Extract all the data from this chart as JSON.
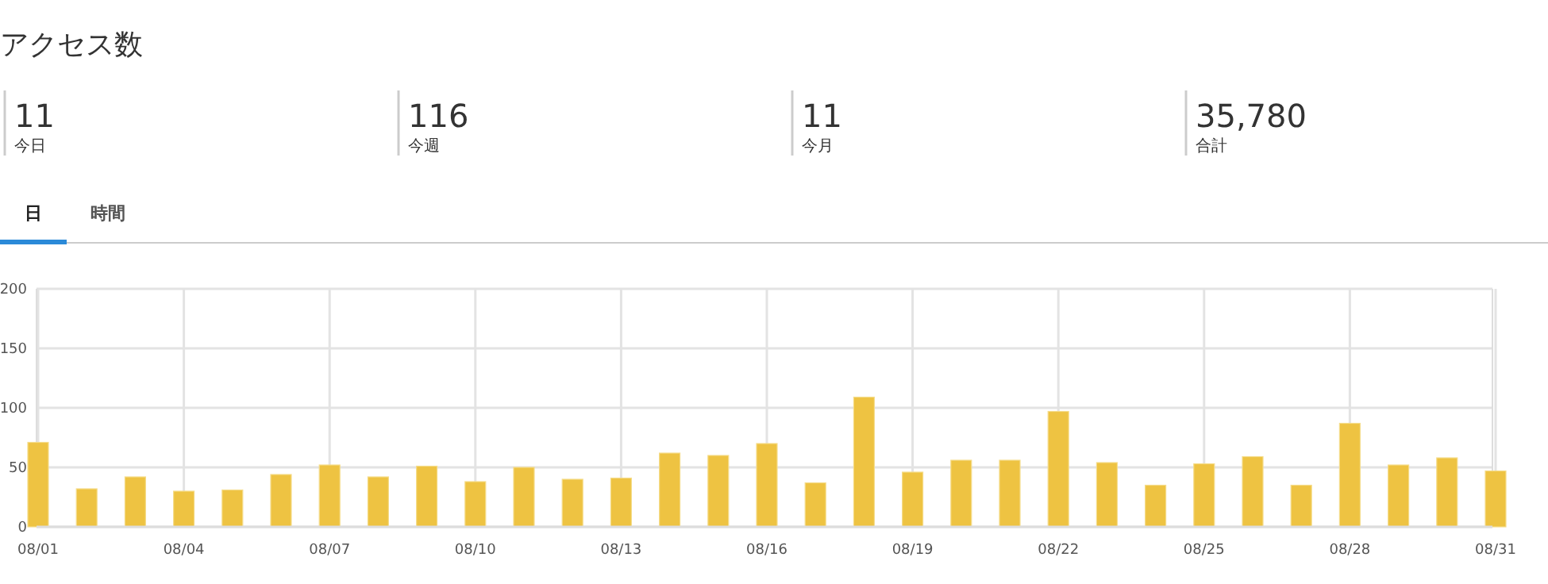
{
  "chart_data": [
    {
      "type": "other",
      "title": "アクセス数",
      "categories": [
        "今日",
        "今週",
        "今月",
        "合計"
      ],
      "value_labels": [
        "11",
        "116",
        "11",
        "35,780"
      ],
      "annotations": [
        "日",
        "時間"
      ]
    },
    {
      "type": "bar",
      "categories": [
        "08/01",
        null,
        null,
        "08/04",
        null,
        null,
        "08/07",
        null,
        null,
        "08/10",
        null,
        null,
        "08/13",
        null,
        null,
        "08/16",
        null,
        null,
        "08/19",
        null,
        null,
        "08/22",
        null,
        null,
        "08/25",
        null,
        null,
        "08/28",
        null,
        null,
        "08/31"
      ],
      "values": [
        71,
        32,
        42,
        30,
        31,
        44,
        52,
        42,
        51,
        38,
        50,
        40,
        41,
        62,
        60,
        70,
        37,
        109,
        46,
        56,
        56,
        97,
        54,
        35,
        53,
        59,
        35,
        87,
        52,
        58,
        47
      ],
      "color": "#eec342",
      "ylim": [
        0,
        200
      ],
      "yticks": [
        0,
        50,
        100,
        150,
        200
      ],
      "grid": true
    }
  ]
}
